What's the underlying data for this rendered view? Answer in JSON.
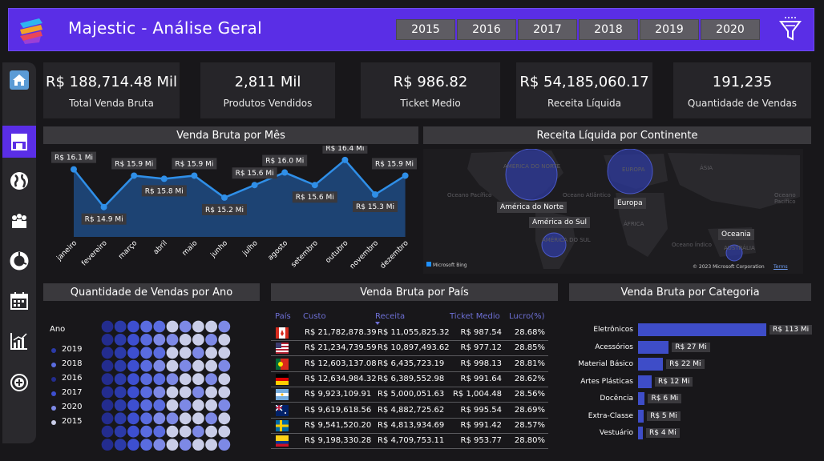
{
  "header": {
    "title": "Majestic - Análise Geral",
    "years": [
      "2015",
      "2016",
      "2017",
      "2018",
      "2019",
      "2020"
    ]
  },
  "sidebar": {
    "icons": [
      "home-icon",
      "store-icon",
      "globe-icon",
      "people-icon",
      "donut-chart-icon",
      "calendar-icon",
      "bar-chart-icon",
      "add-circle-icon"
    ],
    "active": "store-icon"
  },
  "kpis": [
    {
      "value": "R$ 188,714.48 Mil",
      "label": "Total Venda Bruta"
    },
    {
      "value": "2,811 Mil",
      "label": "Produtos Vendidos"
    },
    {
      "value": "R$ 986.82",
      "label": "Ticket Medio"
    },
    {
      "value": "R$ 54,185,060.17",
      "label": "Receita Líquida"
    },
    {
      "value": "191,235",
      "label": "Quantidade de Vendas"
    }
  ],
  "panels": {
    "monthly": "Venda Bruta por Mês",
    "continent": "Receita Líquida por Continente",
    "year_qty": "Quantidade de Vendas por Ano",
    "country": "Venda Bruta por País",
    "category": "Venda Bruta por Categoria"
  },
  "colors": {
    "accent": "#5a2ee6",
    "line": "#2f8fe8",
    "area": "#1f4f8a",
    "bar": "#3e4dc8",
    "header_text": "#6e70d6"
  },
  "chart_data": [
    {
      "type": "line",
      "title": "Venda Bruta por Mês",
      "categories": [
        "janeiro",
        "fevereiro",
        "março",
        "abril",
        "maio",
        "junho",
        "julho",
        "agosto",
        "setembro",
        "outubro",
        "novembro",
        "dezembro"
      ],
      "values": [
        16.1,
        14.9,
        15.9,
        15.8,
        15.9,
        15.2,
        15.6,
        16.0,
        15.6,
        16.4,
        15.3,
        15.9
      ],
      "data_labels": [
        "R$ 16.1 Mi",
        "R$ 14.9 Mi",
        "R$ 15.9 Mi",
        "R$ 15.8 Mi",
        "R$ 15.9 Mi",
        "R$ 15.2 Mi",
        "R$ 15.6 Mi",
        "R$ 16.0 Mi",
        "R$ 15.6 Mi",
        "R$ 16.4 Mi",
        "R$ 15.3 Mi",
        "R$ 15.9 Mi"
      ],
      "ylim": [
        14.0,
        16.6
      ]
    },
    {
      "type": "bar",
      "title": "Venda Bruta por Categoria",
      "orientation": "horizontal",
      "categories": [
        "Eletrônicos",
        "Acessórios",
        "Material Básico",
        "Artes Plásticas",
        "Docência",
        "Extra-Classe",
        "Vestuário"
      ],
      "values": [
        113,
        27,
        22,
        12,
        6,
        5,
        4
      ],
      "data_labels": [
        "R$ 113 Mi",
        "R$ 27 Mi",
        "R$ 22 Mi",
        "R$ 12 Mi",
        "R$ 6 Mi",
        "R$ 5 Mi",
        "R$ 4 Mi"
      ]
    }
  ],
  "map": {
    "labels": [
      "América do Norte",
      "América do Sul",
      "Europa",
      "Oceania"
    ],
    "bg_text": [
      "AMÉRICA DO NORTE",
      "Oceano Pacífico",
      "Oceano Atlântico",
      "EUROPA",
      "ÁSIA",
      "ÁFRICA",
      "AMÉRICA DO SUL",
      "Oceano Índico",
      "AUSTRÁLIA",
      "Oceano Pacífico"
    ],
    "bing": "Microsoft Bing",
    "copyright": "© 2023 Microsoft Corporation",
    "terms": "Terms"
  },
  "year_legend": {
    "title": "Ano",
    "items": [
      {
        "label": "2019",
        "color": "#2b3aa8"
      },
      {
        "label": "2018",
        "color": "#5a6ce0"
      },
      {
        "label": "2016",
        "color": "#232c8e"
      },
      {
        "label": "2017",
        "color": "#3d4fd0"
      },
      {
        "label": "2020",
        "color": "#7d89e6"
      },
      {
        "label": "2015",
        "color": "#c9cde8"
      }
    ]
  },
  "country_table": {
    "headers": [
      "País",
      "Custo",
      "Receita",
      "Ticket Medio",
      "Lucro(%)"
    ],
    "rows": [
      {
        "flag": "canada",
        "custo": "R$ 21,782,878.39",
        "receita": "R$ 11,055,825.32",
        "ticket": "R$ 987.54",
        "lucro": "28.68%"
      },
      {
        "flag": "usa",
        "custo": "R$ 21,234,739.59",
        "receita": "R$ 10,897,493.62",
        "ticket": "R$ 977.12",
        "lucro": "28.85%"
      },
      {
        "flag": "portugal",
        "custo": "R$ 12,603,137.08",
        "receita": "R$ 6,435,723.19",
        "ticket": "R$ 998.13",
        "lucro": "28.81%"
      },
      {
        "flag": "germany",
        "custo": "R$ 12,634,984.32",
        "receita": "R$ 6,389,552.98",
        "ticket": "R$ 991.64",
        "lucro": "28.62%"
      },
      {
        "flag": "argentina",
        "custo": "R$ 9,923,109.91",
        "receita": "R$ 5,000,051.63",
        "ticket": "R$ 1,004.48",
        "lucro": "28.56%"
      },
      {
        "flag": "australia",
        "custo": "R$ 9,619,618.56",
        "receita": "R$ 4,882,725.62",
        "ticket": "R$ 995.54",
        "lucro": "28.69%"
      },
      {
        "flag": "sweden",
        "custo": "R$ 9,541,520.20",
        "receita": "R$ 4,813,934.69",
        "ticket": "R$ 991.42",
        "lucro": "28.57%"
      },
      {
        "flag": "colombia",
        "custo": "R$ 9,198,330.28",
        "receita": "R$ 4,709,753.11",
        "ticket": "R$ 953.77",
        "lucro": "28.80%"
      }
    ]
  }
}
